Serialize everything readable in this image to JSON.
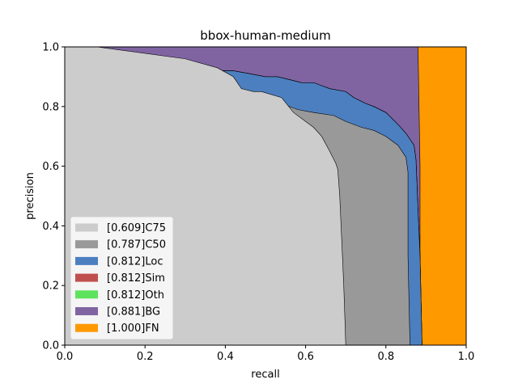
{
  "chart_data": {
    "type": "area",
    "title": "bbox-human-medium",
    "xlabel": "recall",
    "ylabel": "precision",
    "xlim": [
      0.0,
      1.0
    ],
    "ylim": [
      0.0,
      1.0
    ],
    "x_ticks": [
      "0.0",
      "0.2",
      "0.4",
      "0.6",
      "0.8",
      "1.0"
    ],
    "y_ticks": [
      "0.0",
      "0.2",
      "0.4",
      "0.6",
      "0.8",
      "1.0"
    ],
    "grid": false,
    "legend_position": "lower-left",
    "series": [
      {
        "name": "[0.609]C75",
        "color": "#cccccc",
        "points": [
          [
            0.0,
            1.0
          ],
          [
            0.08,
            1.0
          ],
          [
            0.3,
            0.96
          ],
          [
            0.38,
            0.93
          ],
          [
            0.42,
            0.9
          ],
          [
            0.44,
            0.86
          ],
          [
            0.47,
            0.85
          ],
          [
            0.49,
            0.85
          ],
          [
            0.54,
            0.83
          ],
          [
            0.57,
            0.78
          ],
          [
            0.6,
            0.75
          ],
          [
            0.62,
            0.73
          ],
          [
            0.64,
            0.7
          ],
          [
            0.66,
            0.65
          ],
          [
            0.675,
            0.61
          ],
          [
            0.68,
            0.59
          ],
          [
            0.685,
            0.5
          ],
          [
            0.69,
            0.35
          ],
          [
            0.695,
            0.2
          ],
          [
            0.7,
            0.0
          ]
        ]
      },
      {
        "name": "[0.787]C50",
        "color": "#999999",
        "points": [
          [
            0.0,
            1.0
          ],
          [
            0.08,
            1.0
          ],
          [
            0.09,
            0.98
          ],
          [
            0.13,
            0.97
          ],
          [
            0.17,
            0.95
          ],
          [
            0.22,
            0.94
          ],
          [
            0.26,
            0.93
          ],
          [
            0.28,
            0.9
          ],
          [
            0.34,
            0.88
          ],
          [
            0.38,
            0.86
          ],
          [
            0.42,
            0.85
          ],
          [
            0.46,
            0.84
          ],
          [
            0.5,
            0.82
          ],
          [
            0.54,
            0.81
          ],
          [
            0.58,
            0.79
          ],
          [
            0.62,
            0.78
          ],
          [
            0.67,
            0.77
          ],
          [
            0.7,
            0.75
          ],
          [
            0.74,
            0.73
          ],
          [
            0.77,
            0.72
          ],
          [
            0.8,
            0.7
          ],
          [
            0.83,
            0.67
          ],
          [
            0.85,
            0.63
          ],
          [
            0.855,
            0.58
          ],
          [
            0.855,
            0.3
          ],
          [
            0.86,
            0.0
          ]
        ]
      },
      {
        "name": "[0.812]Loc",
        "color": "#4c7fbf",
        "points": [
          [
            0.0,
            1.0
          ],
          [
            0.08,
            1.0
          ],
          [
            0.12,
            0.98
          ],
          [
            0.17,
            0.97
          ],
          [
            0.22,
            0.96
          ],
          [
            0.26,
            0.95
          ],
          [
            0.3,
            0.94
          ],
          [
            0.34,
            0.93
          ],
          [
            0.38,
            0.92
          ],
          [
            0.42,
            0.92
          ],
          [
            0.46,
            0.91
          ],
          [
            0.5,
            0.9
          ],
          [
            0.53,
            0.9
          ],
          [
            0.56,
            0.89
          ],
          [
            0.59,
            0.88
          ],
          [
            0.62,
            0.88
          ],
          [
            0.64,
            0.87
          ],
          [
            0.66,
            0.86
          ],
          [
            0.7,
            0.85
          ],
          [
            0.72,
            0.83
          ],
          [
            0.75,
            0.81
          ],
          [
            0.77,
            0.8
          ],
          [
            0.8,
            0.78
          ],
          [
            0.83,
            0.74
          ],
          [
            0.85,
            0.71
          ],
          [
            0.86,
            0.69
          ],
          [
            0.87,
            0.67
          ],
          [
            0.875,
            0.62
          ],
          [
            0.88,
            0.45
          ],
          [
            0.885,
            0.3
          ],
          [
            0.89,
            0.0
          ]
        ]
      },
      {
        "name": "[0.812]Sim",
        "color": "#c0504d",
        "points": [
          [
            0.0,
            1.0
          ],
          [
            0.08,
            1.0
          ],
          [
            0.12,
            0.98
          ],
          [
            0.17,
            0.97
          ],
          [
            0.22,
            0.96
          ],
          [
            0.26,
            0.95
          ],
          [
            0.3,
            0.94
          ],
          [
            0.34,
            0.93
          ],
          [
            0.38,
            0.92
          ],
          [
            0.42,
            0.92
          ],
          [
            0.46,
            0.91
          ],
          [
            0.5,
            0.9
          ],
          [
            0.53,
            0.9
          ],
          [
            0.56,
            0.89
          ],
          [
            0.59,
            0.88
          ],
          [
            0.62,
            0.88
          ],
          [
            0.64,
            0.87
          ],
          [
            0.66,
            0.86
          ],
          [
            0.7,
            0.85
          ],
          [
            0.72,
            0.83
          ],
          [
            0.75,
            0.81
          ],
          [
            0.77,
            0.8
          ],
          [
            0.8,
            0.78
          ],
          [
            0.83,
            0.74
          ],
          [
            0.85,
            0.71
          ],
          [
            0.86,
            0.69
          ],
          [
            0.87,
            0.67
          ],
          [
            0.875,
            0.62
          ],
          [
            0.88,
            0.45
          ],
          [
            0.885,
            0.3
          ],
          [
            0.89,
            0.0
          ]
        ]
      },
      {
        "name": "[0.812]Oth",
        "color": "#5ee35e",
        "points": [
          [
            0.0,
            1.0
          ],
          [
            0.08,
            1.0
          ],
          [
            0.12,
            0.98
          ],
          [
            0.17,
            0.97
          ],
          [
            0.22,
            0.96
          ],
          [
            0.26,
            0.95
          ],
          [
            0.3,
            0.94
          ],
          [
            0.34,
            0.93
          ],
          [
            0.38,
            0.92
          ],
          [
            0.42,
            0.92
          ],
          [
            0.46,
            0.91
          ],
          [
            0.5,
            0.9
          ],
          [
            0.53,
            0.9
          ],
          [
            0.56,
            0.89
          ],
          [
            0.59,
            0.88
          ],
          [
            0.62,
            0.88
          ],
          [
            0.64,
            0.87
          ],
          [
            0.66,
            0.86
          ],
          [
            0.7,
            0.85
          ],
          [
            0.72,
            0.83
          ],
          [
            0.75,
            0.81
          ],
          [
            0.77,
            0.8
          ],
          [
            0.8,
            0.78
          ],
          [
            0.83,
            0.74
          ],
          [
            0.85,
            0.71
          ],
          [
            0.86,
            0.69
          ],
          [
            0.87,
            0.67
          ],
          [
            0.875,
            0.62
          ],
          [
            0.88,
            0.45
          ],
          [
            0.885,
            0.3
          ],
          [
            0.89,
            0.0
          ]
        ]
      },
      {
        "name": "[0.881]BG",
        "color": "#8064a2",
        "points": [
          [
            0.0,
            1.0
          ],
          [
            0.88,
            1.0
          ],
          [
            0.885,
            0.6
          ],
          [
            0.885,
            0.3
          ],
          [
            0.885,
            0.0
          ]
        ]
      },
      {
        "name": "[1.000]FN",
        "color": "#ff9900",
        "points": [
          [
            0.0,
            1.0
          ],
          [
            1.0,
            1.0
          ],
          [
            1.0,
            0.0
          ]
        ]
      }
    ]
  }
}
